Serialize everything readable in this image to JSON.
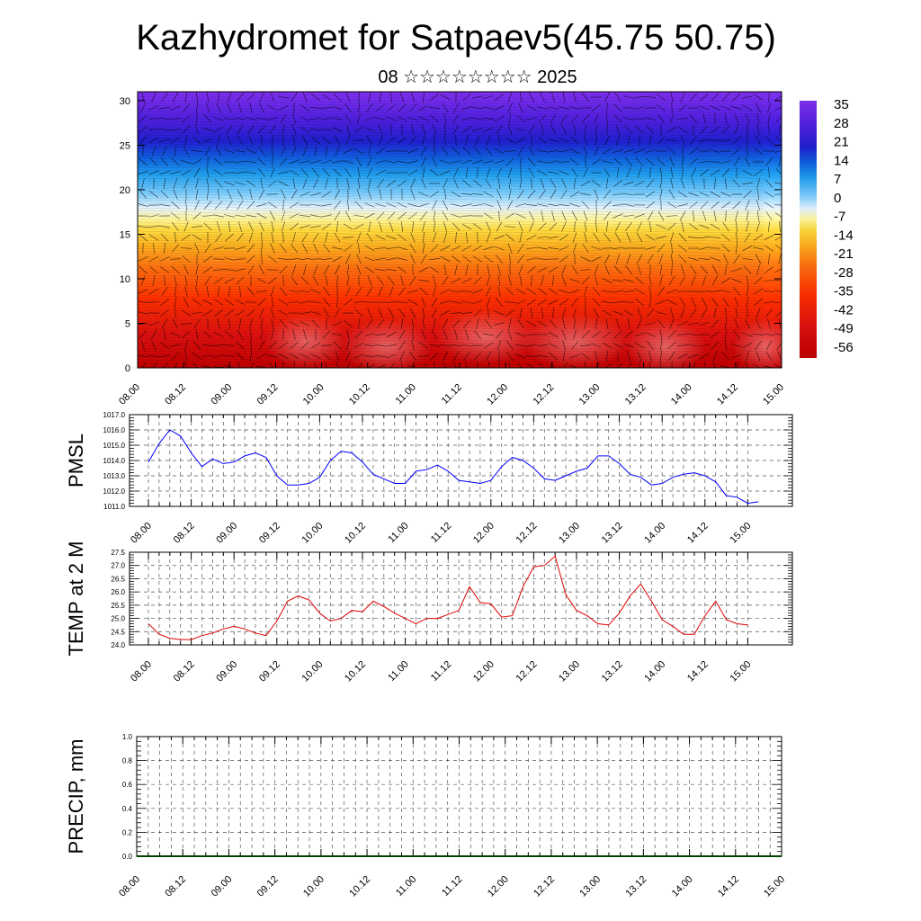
{
  "header": {
    "title": "Kazhydromet for Satpaev5(45.75 50.75)",
    "subtitle": "08 ☆☆☆☆☆☆☆☆ 2025"
  },
  "chart_data": [
    {
      "type": "heatmap",
      "name": "temperature-wind-cross-section",
      "x_ticks": [
        "08.00",
        "08.12",
        "09.00",
        "09.12",
        "10.00",
        "10.12",
        "11.00",
        "11.12",
        "12.00",
        "12.12",
        "13.00",
        "13.12",
        "14.00",
        "14.12",
        "15.00"
      ],
      "y_ticks": [
        "0",
        "5",
        "10",
        "15",
        "20",
        "25",
        "30"
      ],
      "ylim": [
        0,
        31
      ],
      "colorbar": {
        "labels": [
          "35",
          "28",
          "21",
          "14",
          "7",
          "0",
          "-7",
          "-14",
          "-21",
          "-28",
          "-35",
          "-42",
          "-49",
          "-56"
        ],
        "range": [
          -62,
          38
        ]
      },
      "overlay": "wind-barbs"
    },
    {
      "type": "line",
      "name": "pmsl",
      "ylabel": "PMSL",
      "color": "#0000ff",
      "ylim": [
        1011.0,
        1017.0
      ],
      "y_ticks": [
        "1011.0",
        "1012.0",
        "1013.0",
        "1014.0",
        "1015.0",
        "1016.0",
        "1017.0"
      ],
      "x_ticks": [
        "08.00",
        "08.12",
        "09.00",
        "09.12",
        "10.00",
        "10.12",
        "11.00",
        "11.12",
        "12.00",
        "12.12",
        "13.00",
        "13.12",
        "14.00",
        "14.12",
        "15.00"
      ],
      "values": [
        1013.9,
        1015.1,
        1016.0,
        1015.6,
        1014.5,
        1013.6,
        1014.1,
        1013.8,
        1013.9,
        1014.3,
        1014.5,
        1014.2,
        1013.0,
        1012.4,
        1012.4,
        1012.5,
        1012.9,
        1014.0,
        1014.6,
        1014.5,
        1013.9,
        1013.1,
        1012.8,
        1012.5,
        1012.5,
        1013.3,
        1013.4,
        1013.7,
        1013.3,
        1012.7,
        1012.6,
        1012.5,
        1012.7,
        1013.6,
        1014.2,
        1014.0,
        1013.5,
        1012.8,
        1012.7,
        1013.0,
        1013.3,
        1013.5,
        1014.3,
        1014.3,
        1013.8,
        1013.1,
        1012.9,
        1012.4,
        1012.5,
        1012.9,
        1013.1,
        1013.2,
        1013.0,
        1012.6,
        1011.7,
        1011.6,
        1011.2,
        1011.3
      ]
    },
    {
      "type": "line",
      "name": "temp-2m",
      "ylabel": "TEMP at 2 M",
      "color": "#e00000",
      "ylim": [
        24.0,
        27.5
      ],
      "y_ticks": [
        "24.0",
        "24.5",
        "25.0",
        "25.5",
        "26.0",
        "26.5",
        "27.0",
        "27.5"
      ],
      "x_ticks": [
        "08.00",
        "08.12",
        "09.00",
        "09.12",
        "10.00",
        "10.12",
        "11.00",
        "11.12",
        "12.00",
        "12.12",
        "13.00",
        "13.12",
        "14.00",
        "14.12",
        "15.00"
      ],
      "values": [
        24.8,
        24.4,
        24.25,
        24.2,
        24.2,
        24.35,
        24.45,
        24.6,
        24.7,
        24.6,
        24.45,
        24.35,
        24.9,
        25.65,
        25.85,
        25.7,
        25.2,
        24.9,
        25.0,
        25.3,
        25.25,
        25.65,
        25.45,
        25.2,
        25.0,
        24.8,
        25.0,
        25.0,
        25.15,
        25.3,
        26.2,
        25.6,
        25.55,
        25.05,
        25.1,
        26.2,
        26.95,
        27.0,
        27.35,
        25.9,
        25.3,
        25.1,
        24.8,
        24.75,
        25.2,
        25.85,
        26.3,
        25.65,
        24.95,
        24.7,
        24.4,
        24.4,
        25.1,
        25.65,
        24.95,
        24.8,
        24.75
      ]
    },
    {
      "type": "line",
      "name": "precip",
      "ylabel": "PRECIP, mm",
      "color": "#004400",
      "ylim": [
        0.0,
        1.0
      ],
      "y_ticks": [
        "0.0",
        "0.2",
        "0.4",
        "0.6",
        "0.8",
        "1.0"
      ],
      "x_ticks": [
        "08.00",
        "08.12",
        "09.00",
        "09.12",
        "10.00",
        "10.12",
        "11.00",
        "11.12",
        "12.00",
        "12.12",
        "13.00",
        "13.12",
        "14.00",
        "14.12",
        "15.00"
      ],
      "values": [
        0,
        0,
        0,
        0,
        0,
        0,
        0,
        0,
        0,
        0,
        0,
        0,
        0,
        0,
        0,
        0,
        0,
        0,
        0,
        0,
        0,
        0,
        0,
        0,
        0,
        0,
        0,
        0,
        0,
        0,
        0,
        0,
        0,
        0,
        0,
        0,
        0,
        0,
        0,
        0,
        0,
        0,
        0,
        0,
        0,
        0,
        0,
        0,
        0,
        0,
        0,
        0,
        0,
        0,
        0,
        0,
        0,
        0
      ]
    }
  ]
}
